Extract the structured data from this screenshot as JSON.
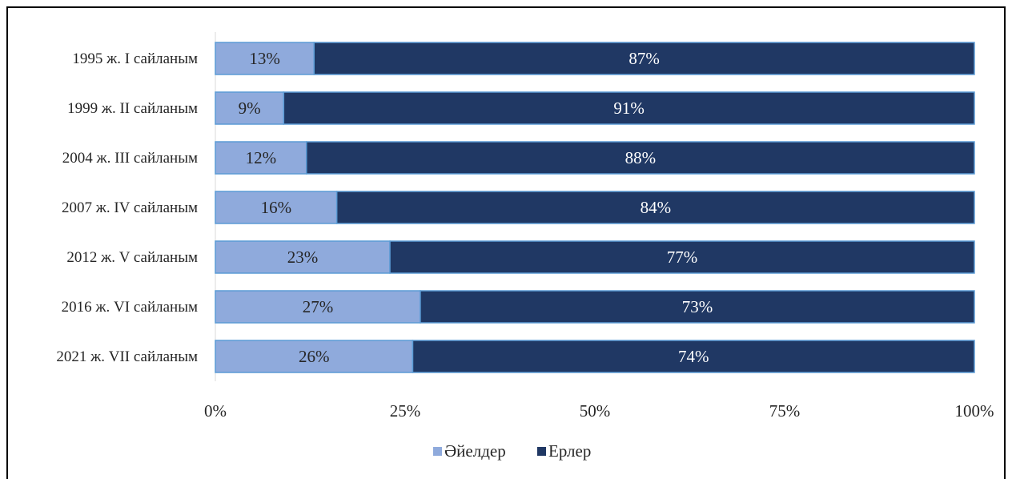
{
  "chart_data": {
    "type": "bar",
    "orientation": "horizontal",
    "stacked": "percent",
    "categories": [
      "1995 ж. I сайланым",
      "1999 ж. II сайланым",
      "2004 ж. III сайланым",
      "2007 ж. IV сайланым",
      "2012 ж. V сайланым",
      "2016 ж. VI сайланым",
      "2021 ж. VII сайланым"
    ],
    "series": [
      {
        "name": "Әйелдер",
        "color": "#8faadc",
        "label_color": "#262626",
        "values": [
          13,
          9,
          12,
          16,
          23,
          27,
          26
        ],
        "labels": [
          "13%",
          "9%",
          "12%",
          "16%",
          "23%",
          "27%",
          "26%"
        ]
      },
      {
        "name": "Ерлер",
        "color": "#203864",
        "label_color": "#ffffff",
        "values": [
          87,
          91,
          88,
          84,
          77,
          73,
          74
        ],
        "labels": [
          "87%",
          "91%",
          "88%",
          "84%",
          "77%",
          "73%",
          "74%"
        ]
      }
    ],
    "bar_border_color": "#5b9bd5",
    "xlim": [
      0,
      100
    ],
    "xticks": [
      {
        "value": 0,
        "label": "0%"
      },
      {
        "value": 25,
        "label": "25%"
      },
      {
        "value": 50,
        "label": "50%"
      },
      {
        "value": 75,
        "label": "75%"
      },
      {
        "value": 100,
        "label": "100%"
      }
    ],
    "title": "",
    "xlabel": "",
    "ylabel": "",
    "grid": false,
    "legend_position": "bottom"
  }
}
